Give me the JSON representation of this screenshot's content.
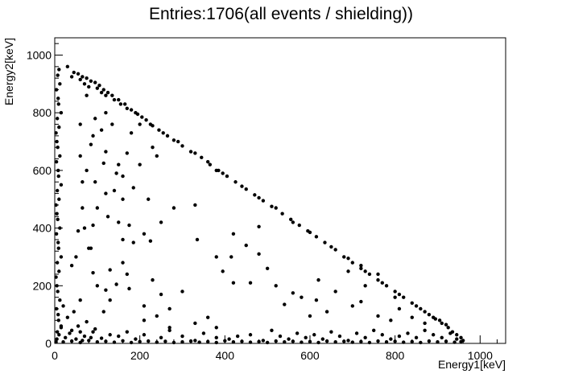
{
  "chart_data": {
    "type": "scatter",
    "title": "Entries:1706(all events / shielding))",
    "xlabel": "Energy1[keV]",
    "ylabel": "Energy2[keV]",
    "xlim": [
      0,
      1060
    ],
    "ylim": [
      0,
      1060
    ],
    "x_ticks": [
      "0",
      "200",
      "400",
      "600",
      "800",
      "1000"
    ],
    "y_ticks": [
      "0",
      "200",
      "400",
      "600",
      "800",
      "1000"
    ],
    "grid": false,
    "legend": "none",
    "marker_color": "#000000",
    "series": [
      {
        "points": [
          [
            30,
            960
          ],
          [
            45,
            940
          ],
          [
            55,
            935
          ],
          [
            65,
            925
          ],
          [
            75,
            920
          ],
          [
            85,
            910
          ],
          [
            95,
            905
          ],
          [
            105,
            895
          ],
          [
            115,
            880
          ],
          [
            125,
            870
          ],
          [
            135,
            860
          ],
          [
            150,
            845
          ],
          [
            165,
            830
          ],
          [
            180,
            810
          ],
          [
            195,
            795
          ],
          [
            205,
            785
          ],
          [
            215,
            775
          ],
          [
            230,
            755
          ],
          [
            245,
            740
          ],
          [
            265,
            720
          ],
          [
            280,
            705
          ],
          [
            300,
            685
          ],
          [
            320,
            665
          ],
          [
            345,
            645
          ],
          [
            365,
            620
          ],
          [
            385,
            600
          ],
          [
            405,
            580
          ],
          [
            425,
            560
          ],
          [
            450,
            535
          ],
          [
            470,
            515
          ],
          [
            490,
            495
          ],
          [
            510,
            475
          ],
          [
            535,
            450
          ],
          [
            555,
            430
          ],
          [
            575,
            410
          ],
          [
            595,
            390
          ],
          [
            615,
            370
          ],
          [
            635,
            350
          ],
          [
            660,
            325
          ],
          [
            680,
            300
          ],
          [
            700,
            280
          ],
          [
            720,
            260
          ],
          [
            740,
            240
          ],
          [
            760,
            220
          ],
          [
            780,
            200
          ],
          [
            800,
            180
          ],
          [
            820,
            160
          ],
          [
            840,
            140
          ],
          [
            860,
            120
          ],
          [
            880,
            100
          ],
          [
            895,
            85
          ],
          [
            910,
            70
          ],
          [
            925,
            55
          ],
          [
            935,
            40
          ],
          [
            945,
            30
          ],
          [
            955,
            20
          ],
          [
            960,
            10
          ],
          [
            40,
            925
          ],
          [
            60,
            915
          ],
          [
            70,
            900
          ],
          [
            80,
            890
          ],
          [
            100,
            885
          ],
          [
            110,
            870
          ],
          [
            120,
            860
          ],
          [
            140,
            845
          ],
          [
            155,
            830
          ],
          [
            170,
            815
          ],
          [
            190,
            800
          ],
          [
            225,
            760
          ],
          [
            255,
            730
          ],
          [
            290,
            700
          ],
          [
            330,
            660
          ],
          [
            360,
            630
          ],
          [
            395,
            590
          ],
          [
            440,
            545
          ],
          [
            480,
            505
          ],
          [
            520,
            470
          ],
          [
            560,
            420
          ],
          [
            600,
            385
          ],
          [
            650,
            335
          ],
          [
            690,
            295
          ],
          [
            730,
            250
          ],
          [
            770,
            210
          ],
          [
            810,
            170
          ],
          [
            850,
            130
          ],
          [
            870,
            110
          ],
          [
            890,
            90
          ],
          [
            905,
            80
          ],
          [
            920,
            65
          ],
          [
            10,
            950
          ],
          [
            12,
            900
          ],
          [
            8,
            850
          ],
          [
            15,
            800
          ],
          [
            10,
            750
          ],
          [
            5,
            700
          ],
          [
            12,
            650
          ],
          [
            8,
            600
          ],
          [
            15,
            550
          ],
          [
            10,
            500
          ],
          [
            5,
            450
          ],
          [
            12,
            400
          ],
          [
            8,
            350
          ],
          [
            15,
            300
          ],
          [
            10,
            250
          ],
          [
            5,
            200
          ],
          [
            12,
            150
          ],
          [
            8,
            100
          ],
          [
            15,
            60
          ],
          [
            10,
            30
          ],
          [
            5,
            15
          ],
          [
            3,
            5
          ],
          [
            6,
            40
          ],
          [
            9,
            80
          ],
          [
            4,
            120
          ],
          [
            7,
            180
          ],
          [
            3,
            230
          ],
          [
            6,
            280
          ],
          [
            9,
            330
          ],
          [
            4,
            380
          ],
          [
            7,
            430
          ],
          [
            3,
            480
          ],
          [
            6,
            530
          ],
          [
            9,
            580
          ],
          [
            4,
            630
          ],
          [
            7,
            680
          ],
          [
            3,
            730
          ],
          [
            6,
            780
          ],
          [
            9,
            830
          ],
          [
            4,
            880
          ],
          [
            7,
            930
          ],
          [
            20,
            5
          ],
          [
            40,
            8
          ],
          [
            60,
            3
          ],
          [
            80,
            10
          ],
          [
            100,
            5
          ],
          [
            120,
            7
          ],
          [
            140,
            4
          ],
          [
            160,
            9
          ],
          [
            180,
            3
          ],
          [
            200,
            6
          ],
          [
            220,
            8
          ],
          [
            240,
            4
          ],
          [
            260,
            7
          ],
          [
            280,
            3
          ],
          [
            300,
            5
          ],
          [
            320,
            8
          ],
          [
            340,
            4
          ],
          [
            360,
            6
          ],
          [
            380,
            3
          ],
          [
            400,
            9
          ],
          [
            420,
            5
          ],
          [
            440,
            7
          ],
          [
            460,
            4
          ],
          [
            480,
            6
          ],
          [
            500,
            3
          ],
          [
            520,
            8
          ],
          [
            540,
            5
          ],
          [
            560,
            7
          ],
          [
            580,
            4
          ],
          [
            600,
            6
          ],
          [
            620,
            3
          ],
          [
            640,
            8
          ],
          [
            660,
            5
          ],
          [
            680,
            7
          ],
          [
            700,
            4
          ],
          [
            720,
            6
          ],
          [
            740,
            3
          ],
          [
            760,
            8
          ],
          [
            780,
            5
          ],
          [
            800,
            7
          ],
          [
            820,
            4
          ],
          [
            840,
            6
          ],
          [
            860,
            3
          ],
          [
            880,
            8
          ],
          [
            900,
            5
          ],
          [
            920,
            7
          ],
          [
            940,
            4
          ],
          [
            955,
            6
          ],
          [
            25,
            20
          ],
          [
            35,
            35
          ],
          [
            50,
            15
          ],
          [
            70,
            25
          ],
          [
            90,
            40
          ],
          [
            110,
            18
          ],
          [
            130,
            30
          ],
          [
            55,
            60
          ],
          [
            75,
            75
          ],
          [
            30,
            90
          ],
          [
            45,
            110
          ],
          [
            20,
            130
          ],
          [
            60,
            150
          ],
          [
            40,
            45
          ],
          [
            15,
            55
          ],
          [
            85,
            20
          ],
          [
            95,
            50
          ],
          [
            65,
            10
          ],
          [
            150,
            25
          ],
          [
            170,
            40
          ],
          [
            190,
            15
          ],
          [
            210,
            30
          ],
          [
            250,
            20
          ],
          [
            270,
            45
          ],
          [
            300,
            25
          ],
          [
            330,
            10
          ],
          [
            350,
            35
          ],
          [
            380,
            20
          ],
          [
            410,
            15
          ],
          [
            430,
            25
          ],
          [
            460,
            30
          ],
          [
            490,
            10
          ],
          [
            510,
            45
          ],
          [
            530,
            25
          ],
          [
            550,
            15
          ],
          [
            570,
            35
          ],
          [
            590,
            20
          ],
          [
            610,
            30
          ],
          [
            630,
            15
          ],
          [
            650,
            40
          ],
          [
            670,
            25
          ],
          [
            690,
            10
          ],
          [
            710,
            35
          ],
          [
            730,
            20
          ],
          [
            750,
            45
          ],
          [
            770,
            30
          ],
          [
            790,
            15
          ],
          [
            810,
            25
          ],
          [
            830,
            35
          ],
          [
            850,
            20
          ],
          [
            870,
            45
          ],
          [
            890,
            30
          ],
          [
            910,
            20
          ],
          [
            930,
            35
          ],
          [
            945,
            15
          ],
          [
            75,
            860
          ],
          [
            95,
            780
          ],
          [
            60,
            760
          ],
          [
            110,
            740
          ],
          [
            85,
            690
          ],
          [
            120,
            665
          ],
          [
            150,
            620
          ],
          [
            145,
            590
          ],
          [
            185,
            540
          ],
          [
            220,
            500
          ],
          [
            115,
            625
          ],
          [
            60,
            650
          ],
          [
            75,
            600
          ],
          [
            95,
            560
          ],
          [
            140,
            530
          ],
          [
            160,
            500
          ],
          [
            100,
            470
          ],
          [
            125,
            440
          ],
          [
            150,
            420
          ],
          [
            55,
            390
          ],
          [
            70,
            400
          ],
          [
            90,
            410
          ],
          [
            175,
            410
          ],
          [
            210,
            380
          ],
          [
            225,
            355
          ],
          [
            185,
            350
          ],
          [
            160,
            280
          ],
          [
            130,
            255
          ],
          [
            90,
            245
          ],
          [
            85,
            330
          ],
          [
            40,
            270
          ],
          [
            50,
            300
          ],
          [
            100,
            200
          ],
          [
            120,
            185
          ],
          [
            145,
            205
          ],
          [
            175,
            190
          ],
          [
            230,
            220
          ],
          [
            300,
            180
          ],
          [
            335,
            360
          ],
          [
            380,
            300
          ],
          [
            395,
            250
          ],
          [
            415,
            300
          ],
          [
            420,
            210
          ],
          [
            460,
            210
          ],
          [
            480,
            310
          ],
          [
            500,
            260
          ],
          [
            450,
            340
          ],
          [
            420,
            380
          ],
          [
            480,
            405
          ],
          [
            520,
            200
          ],
          [
            560,
            175
          ],
          [
            580,
            160
          ],
          [
            600,
            95
          ],
          [
            615,
            150
          ],
          [
            540,
            135
          ],
          [
            640,
            110
          ],
          [
            700,
            130
          ],
          [
            720,
            145
          ],
          [
            760,
            95
          ],
          [
            790,
            80
          ],
          [
            810,
            120
          ],
          [
            840,
            90
          ],
          [
            870,
            70
          ],
          [
            620,
            220
          ],
          [
            660,
            180
          ],
          [
            690,
            250
          ],
          [
            720,
            270
          ],
          [
            760,
            240
          ],
          [
            730,
            200
          ],
          [
            800,
            160
          ],
          [
            380,
            600
          ],
          [
            250,
            420
          ],
          [
            280,
            470
          ],
          [
            330,
            480
          ],
          [
            120,
            520
          ],
          [
            160,
            580
          ],
          [
            200,
            620
          ],
          [
            170,
            660
          ],
          [
            240,
            650
          ],
          [
            200,
            760
          ],
          [
            180,
            730
          ],
          [
            135,
            760
          ],
          [
            230,
            680
          ],
          [
            120,
            800
          ],
          [
            90,
            720
          ],
          [
            65,
            560
          ],
          [
            80,
            330
          ],
          [
            160,
            360
          ],
          [
            210,
            130
          ],
          [
            270,
            120
          ],
          [
            330,
            70
          ],
          [
            360,
            90
          ],
          [
            380,
            55
          ],
          [
            270,
            55
          ],
          [
            240,
            95
          ],
          [
            210,
            80
          ],
          [
            250,
            170
          ],
          [
            170,
            240
          ],
          [
            130,
            150
          ],
          [
            115,
            110
          ],
          [
            60,
            40
          ],
          [
            65,
            470
          ]
        ]
      }
    ]
  }
}
